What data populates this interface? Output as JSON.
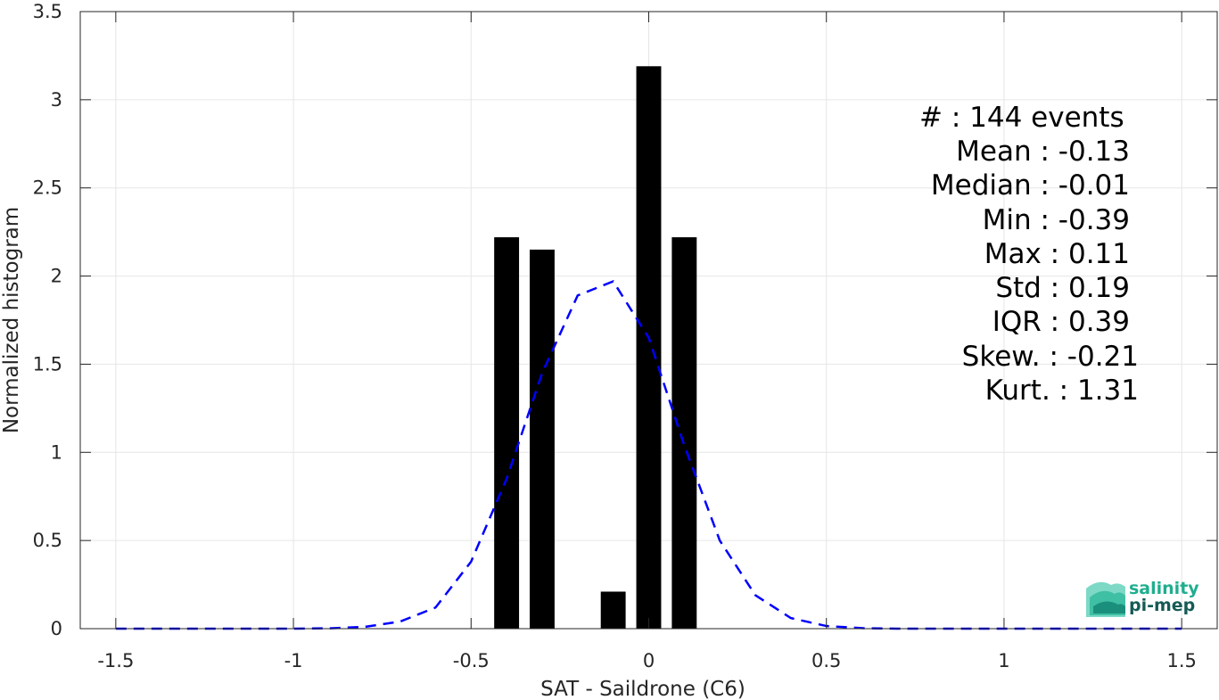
{
  "chart_data": {
    "type": "bar",
    "xlabel": "SAT - Saildrone (C6)",
    "ylabel": "Normalized histogram",
    "xlim": [
      -1.6,
      1.6
    ],
    "ylim": [
      0,
      3.5
    ],
    "grid": true,
    "x_ticks": [
      -1.5,
      -1,
      -0.5,
      0,
      0.5,
      1,
      1.5
    ],
    "x_tick_labels": [
      "-1.5",
      "-1",
      "-0.5",
      "0",
      "0.5",
      "1",
      "1.5"
    ],
    "y_ticks": [
      0,
      0.5,
      1,
      1.5,
      2,
      2.5,
      3,
      3.5
    ],
    "y_tick_labels": [
      "0",
      "0.5",
      "1",
      "1.5",
      "2",
      "2.5",
      "3",
      "3.5"
    ],
    "bar_width": 0.07,
    "bars": [
      {
        "x": -0.4,
        "value": 2.22
      },
      {
        "x": -0.3,
        "value": 2.15
      },
      {
        "x": -0.1,
        "value": 0.21
      },
      {
        "x": 0.0,
        "value": 3.19
      },
      {
        "x": 0.1,
        "value": 2.22
      }
    ],
    "series": [
      {
        "type": "line",
        "style": "dashed",
        "color": "#0000ff",
        "x": [
          -1.5,
          -1.4,
          -1.3,
          -1.2,
          -1.1,
          -1.0,
          -0.9,
          -0.8,
          -0.7,
          -0.6,
          -0.5,
          -0.4,
          -0.3,
          -0.2,
          -0.1,
          0.0,
          0.1,
          0.2,
          0.3,
          0.4,
          0.5,
          0.6,
          0.7,
          0.8,
          0.9,
          1.0,
          1.1,
          1.2,
          1.3,
          1.4,
          1.5
        ],
        "y": [
          0,
          0,
          0,
          0,
          0,
          0,
          0.002,
          0.01,
          0.04,
          0.12,
          0.38,
          0.85,
          1.45,
          1.89,
          1.97,
          1.65,
          1.04,
          0.5,
          0.19,
          0.06,
          0.015,
          0.003,
          0,
          0,
          0,
          0,
          0,
          0,
          0,
          0,
          0
        ]
      }
    ],
    "bar_color": "#000000",
    "annotation_lines": [
      "#  : 144 events",
      "Mean : -0.13",
      "Median : -0.01",
      "Min : -0.39",
      "Max : 0.11",
      "Std : 0.19",
      "IQR : 0.39",
      "Skew. : -0.21",
      "Kurt. : 1.31"
    ]
  },
  "logo": {
    "line1": "salinity",
    "line2": "pi-mep",
    "color1": "#1fae8f",
    "color2": "#155a55"
  }
}
